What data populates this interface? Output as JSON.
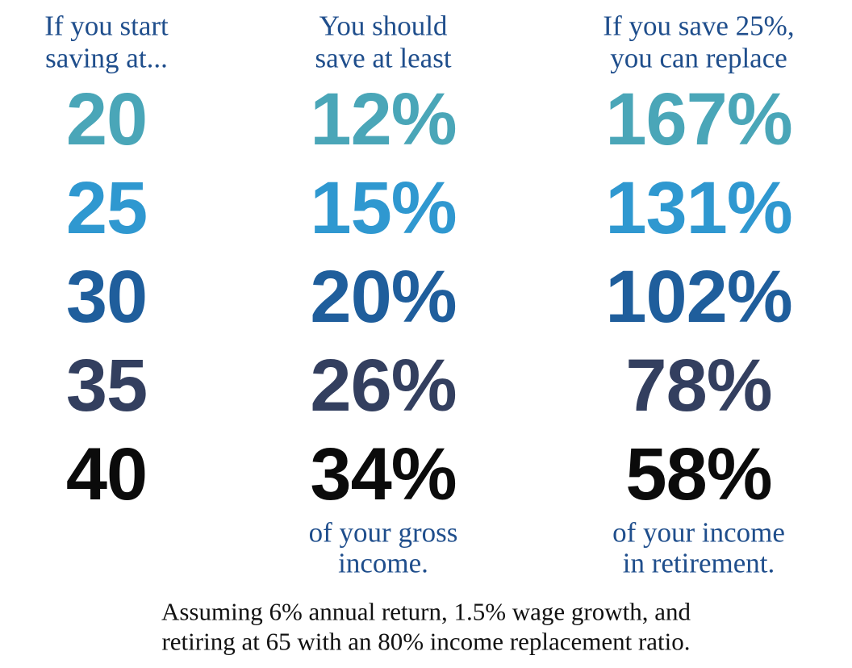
{
  "columns": [
    {
      "header_lines": [
        "If you start",
        "saving at..."
      ],
      "rows": [
        "20",
        "25",
        "30",
        "35",
        "40"
      ],
      "note_lines": []
    },
    {
      "header_lines": [
        "You should",
        "save at least"
      ],
      "rows": [
        "12%",
        "15%",
        "20%",
        "26%",
        "34%"
      ],
      "note_lines": [
        "of your gross",
        "income."
      ]
    },
    {
      "header_lines": [
        "If you save 25%,",
        "you can replace"
      ],
      "rows": [
        "167%",
        "131%",
        "102%",
        "78%",
        "58%"
      ],
      "note_lines": [
        "of your income",
        "in retirement."
      ]
    }
  ],
  "footnote_lines": [
    "Assuming 6% annual return, 1.5% wage growth, and",
    "retiring at 65 with an 80% income replacement ratio."
  ]
}
